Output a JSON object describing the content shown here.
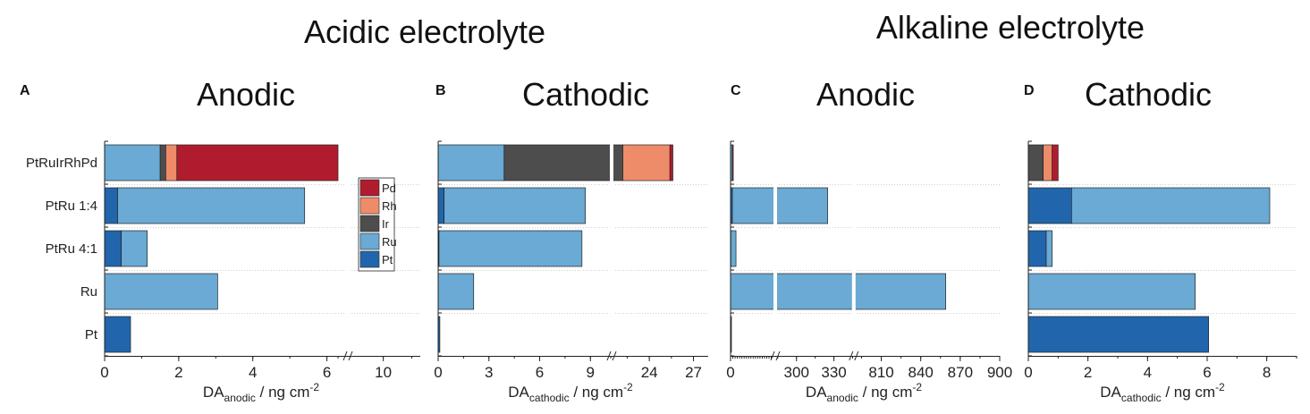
{
  "groups": [
    {
      "title": "Acidic electrolyte"
    },
    {
      "title": "Alkaline electrolyte"
    }
  ],
  "panels": [
    {
      "letter": "A",
      "title": "Anodic",
      "xlabel_main": "DA",
      "xlabel_sub": "anodic",
      "xlabel_unit": " / ng cm",
      "xlabel_sup": "-2"
    },
    {
      "letter": "B",
      "title": "Cathodic",
      "xlabel_main": "DA",
      "xlabel_sub": "cathodic",
      "xlabel_unit": " / ng cm",
      "xlabel_sup": "-2"
    },
    {
      "letter": "C",
      "title": "Anodic",
      "xlabel_main": "DA",
      "xlabel_sub": "anodic",
      "xlabel_unit": " / ng cm",
      "xlabel_sup": "-2"
    },
    {
      "letter": "D",
      "title": "Cathodic",
      "xlabel_main": "DA",
      "xlabel_sub": "cathodic",
      "xlabel_unit": " / ng cm",
      "xlabel_sup": "-2"
    }
  ],
  "legend": [
    {
      "label": "Pd",
      "color": "#b01c2e"
    },
    {
      "label": "Rh",
      "color": "#ee8c69"
    },
    {
      "label": "Ir",
      "color": "#4d4d4d"
    },
    {
      "label": "Ru",
      "color": "#6aaad4"
    },
    {
      "label": "Pt",
      "color": "#2166ac"
    }
  ],
  "chart_data": [
    {
      "type": "bar",
      "orientation": "horizontal",
      "stacked": true,
      "title": "Anodic",
      "xlabel": "DAanodic / ng cm-2",
      "categories": [
        "PtRuIrRhPd",
        "PtRu 1:4",
        "PtRu 4:1",
        "Ru",
        "Pt"
      ],
      "x_axis_break": {
        "from": 6.3,
        "to": 9.1
      },
      "xlim": [
        0,
        11
      ],
      "xticks": [
        0,
        2,
        4,
        6,
        10
      ],
      "series": [
        {
          "name": "Pt",
          "color": "#2166ac",
          "values": [
            0,
            0.35,
            0.45,
            0,
            0.7
          ]
        },
        {
          "name": "Ru",
          "color": "#6aaad4",
          "values": [
            1.5,
            5.05,
            0.7,
            3.05,
            0
          ]
        },
        {
          "name": "Ir",
          "color": "#4d4d4d",
          "values": [
            0.15,
            0,
            0,
            0,
            0
          ]
        },
        {
          "name": "Rh",
          "color": "#ee8c69",
          "values": [
            0.3,
            0,
            0,
            0,
            0
          ]
        },
        {
          "name": "Pd",
          "color": "#b01c2e",
          "values": [
            7.1,
            0,
            0,
            0,
            0
          ]
        }
      ]
    },
    {
      "type": "bar",
      "orientation": "horizontal",
      "stacked": true,
      "title": "Cathodic",
      "xlabel": "DAcathodic / ng cm-2",
      "categories": [
        "PtRuIrRhPd",
        "PtRu 1:4",
        "PtRu 4:1",
        "Ru",
        "Pt"
      ],
      "x_axis_break": {
        "from": 10.2,
        "to": 21.5
      },
      "xlim": [
        0,
        28
      ],
      "xticks": [
        0,
        3,
        6,
        9,
        24,
        27
      ],
      "series": [
        {
          "name": "Pt",
          "color": "#2166ac",
          "values": [
            0,
            0.35,
            0.05,
            0,
            0.1
          ]
        },
        {
          "name": "Ru",
          "color": "#6aaad4",
          "values": [
            3.9,
            8.35,
            8.45,
            2.1,
            0
          ]
        },
        {
          "name": "Ir",
          "color": "#4d4d4d",
          "values": [
            18.3,
            0,
            0,
            0,
            0
          ]
        },
        {
          "name": "Rh",
          "color": "#ee8c69",
          "values": [
            3.2,
            0,
            0,
            0,
            0
          ]
        },
        {
          "name": "Pd",
          "color": "#b01c2e",
          "values": [
            0.2,
            0,
            0,
            0,
            0
          ]
        }
      ]
    },
    {
      "type": "bar",
      "orientation": "horizontal",
      "stacked": true,
      "title": "Anodic",
      "xlabel": "DAanodic / ng cm-2",
      "categories": [
        "PtRuIrRhPd",
        "PtRu 1:4",
        "PtRu 4:1",
        "Ru",
        "Pt"
      ],
      "x_axis_breaks": [
        {
          "from": 280,
          "to": 285
        },
        {
          "from": 345,
          "to": 790
        }
      ],
      "xlim": [
        0,
        900
      ],
      "xticks": [
        0,
        300,
        330,
        810,
        840,
        870,
        900
      ],
      "series": [
        {
          "name": "Pt",
          "color": "#2166ac",
          "values": [
            0,
            12,
            2,
            0,
            2
          ]
        },
        {
          "name": "Ru",
          "color": "#6aaad4",
          "values": [
            12,
            313,
            34,
            859,
            0
          ]
        },
        {
          "name": "Ir",
          "color": "#4d4d4d",
          "values": [
            0,
            0,
            0,
            0,
            0
          ]
        },
        {
          "name": "Rh",
          "color": "#ee8c69",
          "values": [
            0,
            0,
            0,
            0,
            0
          ]
        },
        {
          "name": "Pd",
          "color": "#b01c2e",
          "values": [
            5,
            0,
            0,
            0,
            0
          ]
        }
      ]
    },
    {
      "type": "bar",
      "orientation": "horizontal",
      "stacked": true,
      "title": "Cathodic",
      "xlabel": "DAcathodic / ng cm-2",
      "categories": [
        "PtRuIrRhPd",
        "PtRu 1:4",
        "PtRu 4:1",
        "Ru",
        "Pt"
      ],
      "xlim": [
        0,
        9
      ],
      "xticks": [
        0,
        2,
        4,
        6,
        8
      ],
      "series": [
        {
          "name": "Pt",
          "color": "#2166ac",
          "values": [
            0,
            1.45,
            0.6,
            0,
            6.05
          ]
        },
        {
          "name": "Ru",
          "color": "#6aaad4",
          "values": [
            0,
            6.65,
            0.2,
            5.6,
            0
          ]
        },
        {
          "name": "Ir",
          "color": "#4d4d4d",
          "values": [
            0.5,
            0,
            0,
            0,
            0
          ]
        },
        {
          "name": "Rh",
          "color": "#ee8c69",
          "values": [
            0.3,
            0,
            0,
            0,
            0
          ]
        },
        {
          "name": "Pd",
          "color": "#b01c2e",
          "values": [
            0.2,
            0,
            0,
            0,
            0
          ]
        }
      ]
    }
  ]
}
